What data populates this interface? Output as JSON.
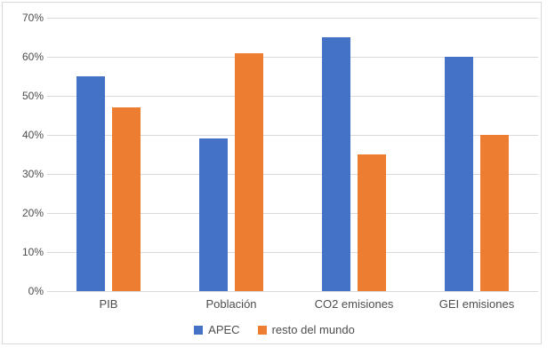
{
  "chart_data": {
    "type": "bar",
    "categories": [
      "PIB",
      "Población",
      "CO2 emisiones",
      "GEI emisiones"
    ],
    "series": [
      {
        "name": "APEC",
        "color": "#4472C4",
        "values": [
          55,
          39,
          65,
          60
        ]
      },
      {
        "name": "resto del mundo",
        "color": "#ED7D31",
        "values": [
          47,
          61,
          35,
          40
        ]
      }
    ],
    "title": "",
    "xlabel": "",
    "ylabel": "",
    "ylim": [
      0,
      70
    ],
    "y_tick_step": 10,
    "y_tick_labels": [
      "0%",
      "10%",
      "20%",
      "30%",
      "40%",
      "50%",
      "60%",
      "70%"
    ],
    "grid": "horizontal",
    "gridline_color": "#d9d9d9",
    "border_color": "#d9d9d9",
    "text_color": "#4d4d4d",
    "legend_position": "bottom"
  }
}
